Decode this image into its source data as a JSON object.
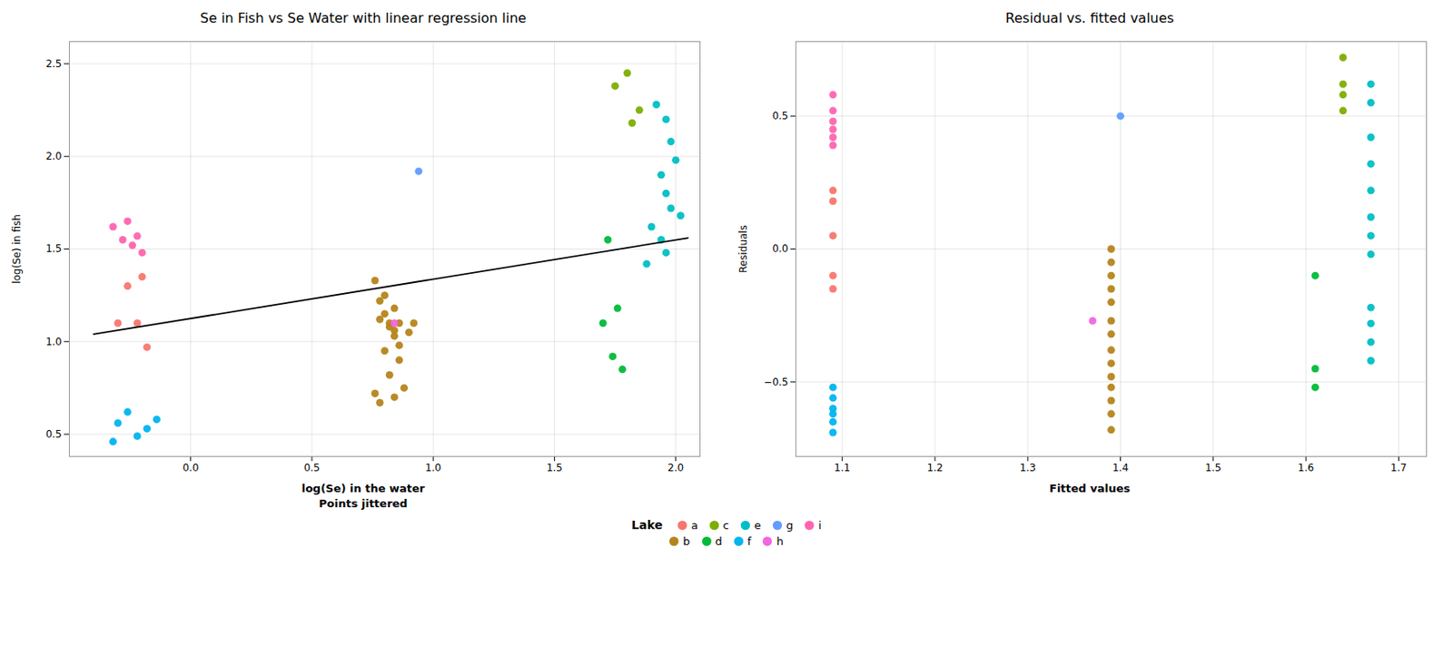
{
  "chart_data": [
    {
      "type": "scatter",
      "title": "Se in Fish vs Se Water with linear regression line",
      "xlabel": "log(Se) in the water\nPoints jittered",
      "ylabel": "log(Se) in fish",
      "xlim": [
        -0.5,
        2.1
      ],
      "ylim": [
        0.38,
        2.62
      ],
      "xticks": [
        {
          "value": 0,
          "label": "0.0"
        },
        0.5,
        {
          "value": 1,
          "label": "1.0"
        },
        1.5,
        {
          "value": 2,
          "label": "2.0"
        }
      ],
      "yticks": [
        0.5,
        {
          "value": 1,
          "label": "1.0"
        },
        1.5,
        {
          "value": 2,
          "label": "2.0"
        },
        2.5
      ],
      "grid": true,
      "legend": "bottom",
      "legend_title": "Lake",
      "series": [
        {
          "name": "a",
          "color": "#F8766D",
          "x": [
            -0.3,
            -0.22,
            -0.18,
            -0.26,
            -0.2
          ],
          "y": [
            1.1,
            1.1,
            0.97,
            1.3,
            1.35
          ]
        },
        {
          "name": "c",
          "color": "#7CAE00",
          "x": [
            1.8,
            1.75,
            1.85,
            1.82
          ],
          "y": [
            2.45,
            2.38,
            2.25,
            2.18
          ]
        },
        {
          "name": "e",
          "color": "#00BFC4",
          "x": [
            1.92,
            1.96,
            1.98,
            2.0,
            1.94,
            1.96,
            1.98,
            2.02,
            1.9,
            1.94,
            1.96,
            1.88
          ],
          "y": [
            2.28,
            2.2,
            2.08,
            1.98,
            1.9,
            1.8,
            1.72,
            1.68,
            1.62,
            1.55,
            1.48,
            1.42
          ]
        },
        {
          "name": "g",
          "color": "#619CFF",
          "x": [
            0.94
          ],
          "y": [
            1.92
          ]
        },
        {
          "name": "i",
          "color": "#FF64B0",
          "x": [
            -0.28,
            -0.24,
            -0.2,
            -0.32,
            -0.26,
            -0.22
          ],
          "y": [
            1.55,
            1.52,
            1.48,
            1.62,
            1.65,
            1.57
          ]
        },
        {
          "name": "b",
          "color": "#B5851B",
          "x": [
            0.76,
            0.78,
            0.8,
            0.82,
            0.84,
            0.86,
            0.84,
            0.8,
            0.86,
            0.9,
            0.82,
            0.78,
            0.84,
            0.86,
            0.8,
            0.92,
            0.76,
            0.82,
            0.88,
            0.84,
            0.78
          ],
          "y": [
            1.33,
            1.22,
            1.15,
            1.1,
            1.06,
            1.1,
            1.18,
            1.25,
            0.98,
            1.05,
            1.08,
            1.12,
            1.03,
            0.9,
            0.95,
            1.1,
            0.72,
            0.82,
            0.75,
            0.7,
            0.67
          ]
        },
        {
          "name": "d",
          "color": "#00BA38",
          "x": [
            1.72,
            1.76,
            1.7,
            1.74,
            1.78
          ],
          "y": [
            1.55,
            1.18,
            1.1,
            0.92,
            0.85
          ]
        },
        {
          "name": "f",
          "color": "#00B4F0",
          "x": [
            -0.3,
            -0.22,
            -0.18,
            -0.26,
            -0.14,
            -0.32
          ],
          "y": [
            0.56,
            0.49,
            0.53,
            0.62,
            0.58,
            0.46
          ]
        },
        {
          "name": "h",
          "color": "#F564E3",
          "x": [
            0.84
          ],
          "y": [
            1.1
          ]
        },
        {
          "type": "line",
          "color": "black",
          "x": [
            -0.4,
            2.05
          ],
          "y": [
            1.04,
            1.56
          ]
        }
      ]
    },
    {
      "type": "scatter",
      "title": "Residual vs. fitted values",
      "xlabel": "Fitted values",
      "ylabel": "Residuals",
      "xlim": [
        1.05,
        1.73
      ],
      "ylim": [
        -0.78,
        0.78
      ],
      "xticks": [
        1.1,
        1.2,
        1.3,
        1.4,
        1.5,
        1.6,
        1.7
      ],
      "yticks": [
        {
          "value": -0.5,
          "label": "−0.5"
        },
        {
          "value": 0,
          "label": "0.0"
        },
        0.5
      ],
      "grid": true,
      "series": [
        {
          "name": "a",
          "color": "#F8766D",
          "x": [
            1.09,
            1.09,
            1.09,
            1.09,
            1.09
          ],
          "y": [
            0.22,
            0.18,
            0.05,
            -0.1,
            -0.15
          ]
        },
        {
          "name": "c",
          "color": "#7CAE00",
          "x": [
            1.64,
            1.64,
            1.64,
            1.64
          ],
          "y": [
            0.72,
            0.62,
            0.58,
            0.52
          ]
        },
        {
          "name": "e",
          "color": "#00BFC4",
          "x": [
            1.67,
            1.67,
            1.67,
            1.67,
            1.67,
            1.67,
            1.67,
            1.67,
            1.67,
            1.67,
            1.67,
            1.67
          ],
          "y": [
            0.62,
            0.55,
            0.42,
            0.32,
            0.22,
            0.12,
            0.05,
            -0.02,
            -0.22,
            -0.28,
            -0.35,
            -0.42
          ]
        },
        {
          "name": "g",
          "color": "#619CFF",
          "x": [
            1.4
          ],
          "y": [
            0.5
          ]
        },
        {
          "name": "i",
          "color": "#FF64B0",
          "x": [
            1.09,
            1.09,
            1.09,
            1.09,
            1.09,
            1.09
          ],
          "y": [
            0.58,
            0.52,
            0.48,
            0.45,
            0.42,
            0.39
          ]
        },
        {
          "name": "b",
          "color": "#B5851B",
          "x": [
            1.39,
            1.39,
            1.39,
            1.39,
            1.39,
            1.39,
            1.39,
            1.39,
            1.39,
            1.39,
            1.39,
            1.39,
            1.39,
            1.39
          ],
          "y": [
            0.0,
            -0.05,
            -0.1,
            -0.15,
            -0.2,
            -0.27,
            -0.32,
            -0.38,
            -0.43,
            -0.48,
            -0.52,
            -0.57,
            -0.62,
            -0.68
          ]
        },
        {
          "name": "d",
          "color": "#00BA38",
          "x": [
            1.61,
            1.61,
            1.61
          ],
          "y": [
            -0.1,
            -0.45,
            -0.52
          ]
        },
        {
          "name": "f",
          "color": "#00B4F0",
          "x": [
            1.09,
            1.09,
            1.09,
            1.09,
            1.09,
            1.09
          ],
          "y": [
            -0.52,
            -0.56,
            -0.6,
            -0.62,
            -0.65,
            -0.69
          ]
        },
        {
          "name": "h",
          "color": "#F564E3",
          "x": [
            1.37
          ],
          "y": [
            -0.27
          ]
        }
      ]
    }
  ]
}
